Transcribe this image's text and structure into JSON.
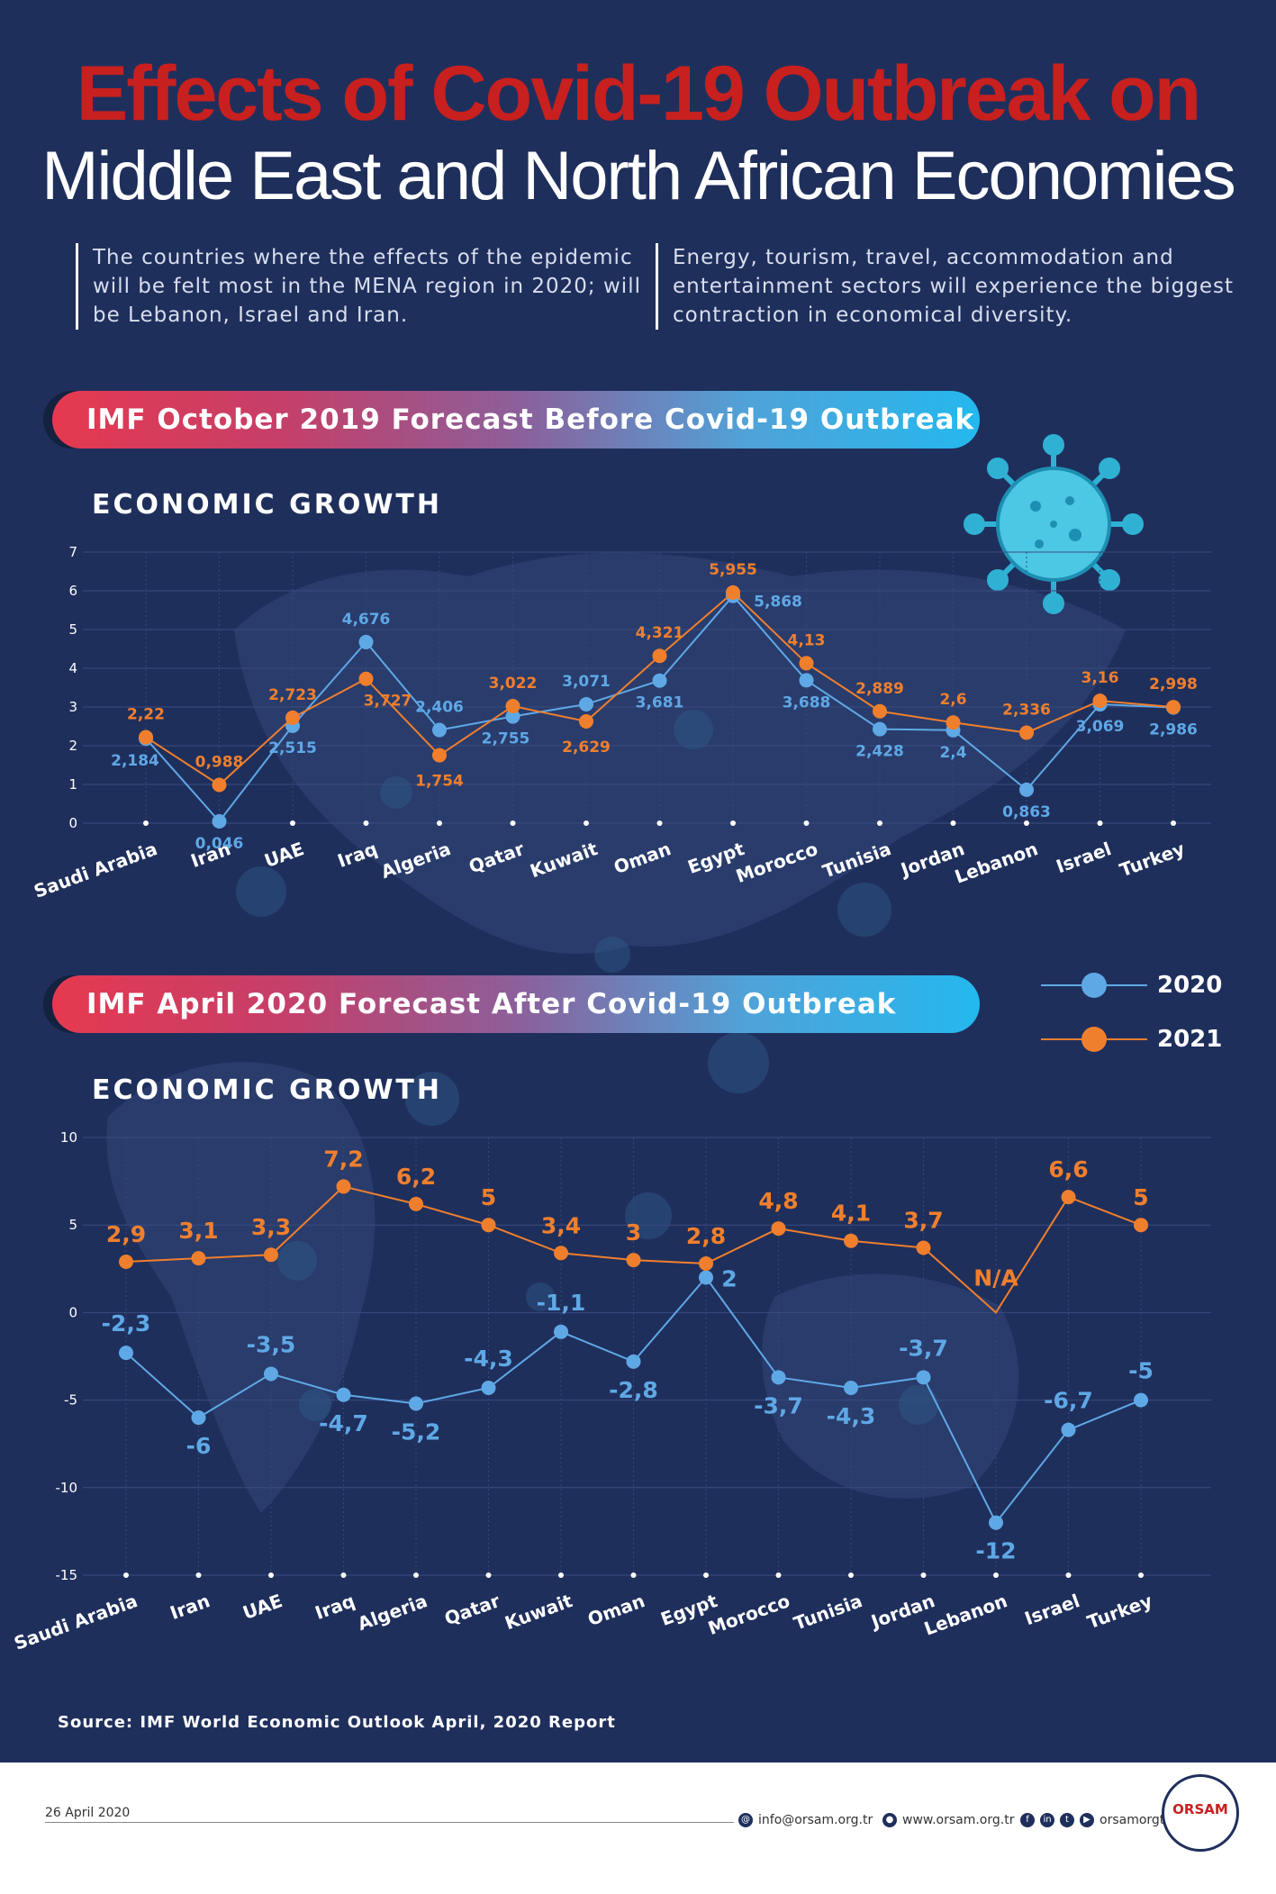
{
  "header": {
    "title_line1": "Effects of Covid-19 Outbreak on",
    "title_line2": "Middle East and North African Economies",
    "intro_left": "The countries where the effects of the epidemic will be felt most in the MENA region in 2020; will be Lebanon, Israel and Iran.",
    "intro_right": "Energy, tourism, travel, accommodation and entertainment sectors will experience the biggest contraction in economical diversity."
  },
  "colors": {
    "background": "#1f2f5c",
    "series_2020": "#5fa8e6",
    "series_2021": "#f07f2d",
    "title_red": "#c8201f"
  },
  "legend": {
    "items": [
      "2020",
      "2021"
    ]
  },
  "chart_data": [
    {
      "type": "line",
      "banner": "IMF October 2019 Forecast Before Covid-19 Outbreak",
      "title": "ECONOMIC GROWTH",
      "categories": [
        "Saudi Arabia",
        "Iran",
        "UAE",
        "Iraq",
        "Algeria",
        "Qatar",
        "Kuwait",
        "Oman",
        "Egypt",
        "Morocco",
        "Tunisia",
        "Jordan",
        "Lebanon",
        "Israel",
        "Turkey"
      ],
      "ylim": [
        0,
        7
      ],
      "yticks": [
        "0",
        "1",
        "2",
        "3",
        "4",
        "5",
        "6",
        "7"
      ],
      "series": [
        {
          "name": "2020",
          "values": [
            2.184,
            0.046,
            2.515,
            4.676,
            2.406,
            2.755,
            3.071,
            3.681,
            5.868,
            3.688,
            2.428,
            2.4,
            0.863,
            3.069,
            2.986
          ],
          "labels": [
            "2,184",
            "0,046",
            "2,515",
            "4,676",
            "2,406",
            "2,755",
            "3,071",
            "3,681",
            "5,868",
            "3,688",
            "2,428",
            "2,4",
            "0,863",
            "3,069",
            "2,986"
          ]
        },
        {
          "name": "2021",
          "values": [
            2.22,
            0.988,
            2.723,
            3.727,
            1.754,
            3.022,
            2.629,
            4.321,
            5.955,
            4.13,
            2.889,
            2.6,
            2.336,
            3.16,
            2.998
          ],
          "labels": [
            "2,22",
            "0,988",
            "2,723",
            "3,727",
            "1,754",
            "3,022",
            "2,629",
            "4,321",
            "5,955",
            "4,13",
            "2,889",
            "2,6",
            "2,336",
            "3,16",
            "2,998"
          ]
        }
      ],
      "grid": true
    },
    {
      "type": "line",
      "banner": "IMF April 2020 Forecast After Covid-19 Outbreak",
      "title": "ECONOMIC GROWTH",
      "categories": [
        "Saudi Arabia",
        "Iran",
        "UAE",
        "Iraq",
        "Algeria",
        "Qatar",
        "Kuwait",
        "Oman",
        "Egypt",
        "Morocco",
        "Tunisia",
        "Jordan",
        "Lebanon",
        "Israel",
        "Turkey"
      ],
      "ylim": [
        -15,
        10
      ],
      "yticks": [
        "-15",
        "-10",
        "-5",
        "0",
        "5",
        "10"
      ],
      "series": [
        {
          "name": "2020",
          "values": [
            -2.3,
            -6,
            -3.5,
            -4.7,
            -5.2,
            -4.3,
            -1.1,
            -2.8,
            2,
            -3.7,
            -4.3,
            -3.7,
            -12,
            -6.7,
            -5
          ],
          "labels": [
            "-2,3",
            "-6",
            "-3,5",
            "-4,7",
            "-5,2",
            "-4,3",
            "-1,1",
            "-2,8",
            "2",
            "-3,7",
            "-4,3",
            "-3,7",
            "-12",
            "-6,7",
            "-5"
          ]
        },
        {
          "name": "2021",
          "values": [
            2.9,
            3.1,
            3.3,
            7.2,
            6.2,
            5,
            3.4,
            3,
            2.8,
            4.8,
            4.1,
            3.7,
            null,
            6.6,
            5
          ],
          "labels": [
            "2,9",
            "3,1",
            "3,3",
            "7,2",
            "6,2",
            "5",
            "3,4",
            "3",
            "2,8",
            "4,8",
            "4,1",
            "3,7",
            "N/A",
            "6,6",
            "5"
          ]
        }
      ],
      "grid": true
    }
  ],
  "source": "Source: IMF World Economic Outlook April, 2020 Report",
  "footer": {
    "date": "26 April 2020",
    "email": "info@orsam.org.tr",
    "website": "www.orsam.org.tr",
    "social": "orsamorgtr",
    "logo_text": "ORSAM"
  }
}
